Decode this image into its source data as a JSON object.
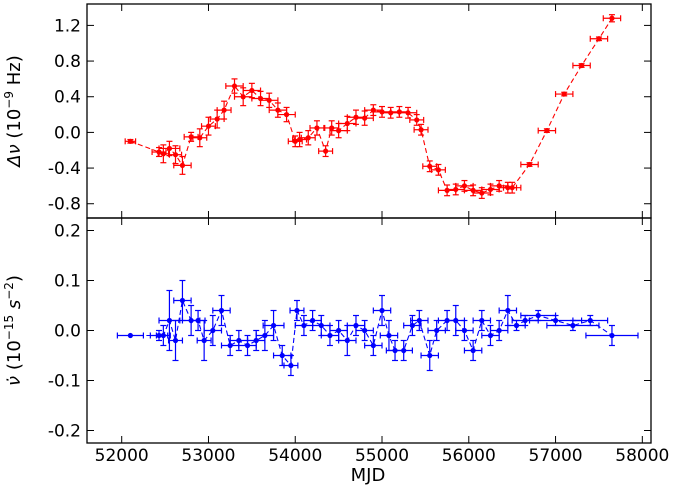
{
  "chart_data": {
    "type": "scatter",
    "shared_x": {
      "label": "MJD",
      "lim": [
        51600,
        58100
      ],
      "ticks": [
        52000,
        53000,
        54000,
        55000,
        56000,
        57000,
        58000
      ],
      "tick_labels": [
        "52000",
        "53000",
        "54000",
        "55000",
        "56000",
        "57000",
        "58000"
      ]
    },
    "panels": [
      {
        "name": "delta-nu",
        "ylabel_main": "Δν",
        "ylabel_unit_prefix": "(10",
        "ylabel_exp": "−9",
        "ylabel_unit_suffix": " Hz)",
        "ylim": [
          -0.96,
          1.44
        ],
        "yticks": [
          -0.8,
          -0.4,
          0.0,
          0.4,
          0.8,
          1.2
        ],
        "ytick_labels": [
          "-0.8",
          "-0.4",
          "0.0",
          "0.4",
          "0.8",
          "1.2"
        ],
        "color": "#ff0000",
        "line_style": "dashed",
        "x": [
          52100,
          52430,
          52480,
          52550,
          52620,
          52700,
          52800,
          52900,
          53000,
          53100,
          53180,
          53300,
          53400,
          53500,
          53600,
          53700,
          53800,
          53900,
          54000,
          54050,
          54150,
          54250,
          54350,
          54420,
          54500,
          54600,
          54700,
          54800,
          54900,
          55000,
          55100,
          55200,
          55300,
          55400,
          55450,
          55550,
          55650,
          55750,
          55850,
          55950,
          56050,
          56150,
          56250,
          56350,
          56450,
          56500,
          56700,
          56900,
          57100,
          57300,
          57500,
          57650
        ],
        "y": [
          -0.1,
          -0.22,
          -0.24,
          -0.18,
          -0.25,
          -0.37,
          -0.05,
          -0.06,
          0.07,
          0.15,
          0.25,
          0.52,
          0.4,
          0.47,
          0.38,
          0.36,
          0.25,
          0.2,
          -0.1,
          -0.08,
          -0.06,
          0.05,
          -0.21,
          0.05,
          0.02,
          0.1,
          0.17,
          0.16,
          0.25,
          0.23,
          0.22,
          0.23,
          0.22,
          0.14,
          0.03,
          -0.38,
          -0.42,
          -0.65,
          -0.64,
          -0.6,
          -0.65,
          -0.68,
          -0.64,
          -0.6,
          -0.62,
          -0.62,
          -0.36,
          0.02,
          0.43,
          0.75,
          1.05,
          1.28
        ],
        "xerr": [
          60,
          80,
          60,
          120,
          70,
          100,
          80,
          80,
          80,
          80,
          80,
          100,
          100,
          100,
          100,
          100,
          100,
          100,
          80,
          80,
          80,
          80,
          80,
          80,
          100,
          100,
          100,
          100,
          100,
          100,
          100,
          100,
          100,
          80,
          80,
          80,
          80,
          100,
          100,
          100,
          100,
          100,
          100,
          100,
          100,
          100,
          100,
          100,
          100,
          100,
          100,
          100
        ],
        "yerr": [
          0.02,
          0.05,
          0.1,
          0.08,
          0.1,
          0.1,
          0.05,
          0.1,
          0.1,
          0.1,
          0.1,
          0.08,
          0.1,
          0.08,
          0.08,
          0.08,
          0.08,
          0.08,
          0.06,
          0.08,
          0.08,
          0.08,
          0.06,
          0.08,
          0.08,
          0.08,
          0.08,
          0.08,
          0.06,
          0.06,
          0.06,
          0.06,
          0.06,
          0.06,
          0.06,
          0.06,
          0.06,
          0.06,
          0.06,
          0.06,
          0.06,
          0.06,
          0.06,
          0.06,
          0.06,
          0.06,
          0.02,
          0.02,
          0.02,
          0.02,
          0.02,
          0.04
        ]
      },
      {
        "name": "nu-dot",
        "ylabel_main": "ν̇",
        "ylabel_unit_prefix": "(10",
        "ylabel_exp": "−15",
        "ylabel_unit_suffix": "s",
        "ylabel_exp2": "−2",
        "ylabel_unit_close": ")",
        "ylim": [
          -0.225,
          0.225
        ],
        "yticks": [
          -0.2,
          -0.1,
          0.0,
          0.1,
          0.2
        ],
        "ytick_labels": [
          "-0.2",
          "-0.1",
          "0.0",
          "0.1",
          "0.2"
        ],
        "color": "#0000ff",
        "line_style": "dashed",
        "x": [
          52100,
          52430,
          52480,
          52550,
          52620,
          52700,
          52800,
          52880,
          52950,
          53050,
          53150,
          53250,
          53350,
          53450,
          53550,
          53650,
          53750,
          53850,
          53950,
          54020,
          54100,
          54200,
          54300,
          54400,
          54500,
          54600,
          54700,
          54800,
          54900,
          55000,
          55080,
          55150,
          55250,
          55350,
          55430,
          55550,
          55630,
          55750,
          55850,
          55950,
          56050,
          56150,
          56250,
          56350,
          56450,
          56550,
          56650,
          56800,
          57000,
          57200,
          57400,
          57650
        ],
        "y": [
          -0.01,
          -0.01,
          -0.01,
          0.02,
          -0.02,
          0.06,
          0.02,
          0.02,
          -0.02,
          0.0,
          0.04,
          -0.03,
          -0.02,
          -0.03,
          -0.02,
          -0.01,
          0.01,
          -0.05,
          -0.07,
          0.04,
          0.01,
          0.02,
          0.01,
          -0.01,
          0.0,
          -0.02,
          0.01,
          0.0,
          -0.03,
          0.04,
          -0.01,
          -0.04,
          -0.04,
          0.01,
          0.02,
          -0.05,
          0.0,
          0.02,
          0.02,
          0.0,
          -0.04,
          0.02,
          -0.01,
          0.0,
          0.04,
          0.01,
          0.02,
          0.03,
          0.02,
          0.01,
          0.02,
          -0.01
        ],
        "xerr": [
          150,
          100,
          80,
          120,
          80,
          100,
          100,
          80,
          80,
          100,
          100,
          100,
          100,
          100,
          100,
          100,
          120,
          100,
          80,
          80,
          100,
          100,
          100,
          100,
          100,
          100,
          100,
          100,
          100,
          100,
          100,
          100,
          100,
          100,
          100,
          100,
          100,
          100,
          100,
          100,
          100,
          100,
          100,
          100,
          100,
          100,
          150,
          200,
          300,
          300,
          200,
          300
        ],
        "yerr": [
          0.0,
          0.01,
          0.02,
          0.06,
          0.04,
          0.04,
          0.03,
          0.02,
          0.04,
          0.03,
          0.03,
          0.02,
          0.02,
          0.02,
          0.02,
          0.03,
          0.03,
          0.02,
          0.02,
          0.02,
          0.02,
          0.02,
          0.02,
          0.02,
          0.02,
          0.03,
          0.02,
          0.02,
          0.02,
          0.03,
          0.03,
          0.02,
          0.02,
          0.02,
          0.02,
          0.03,
          0.02,
          0.02,
          0.03,
          0.02,
          0.02,
          0.02,
          0.02,
          0.02,
          0.03,
          0.01,
          0.01,
          0.01,
          0.01,
          0.01,
          0.01,
          0.02
        ]
      }
    ]
  }
}
